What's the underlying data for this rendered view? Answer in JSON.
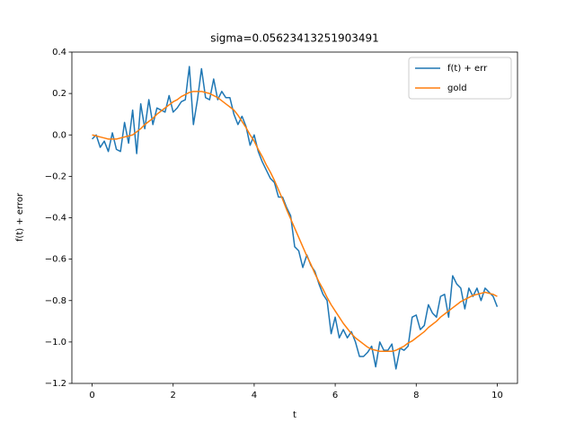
{
  "chart_data": {
    "type": "line",
    "title": "sigma=0.05623413251903491",
    "x_label": "t",
    "y_label": "f(t) + error",
    "x": [
      0,
      0.1,
      0.2,
      0.3,
      0.4,
      0.5,
      0.6,
      0.7,
      0.8,
      0.9,
      1,
      1.1,
      1.2,
      1.3,
      1.4,
      1.5,
      1.6,
      1.7,
      1.8,
      1.9,
      2,
      2.1,
      2.2,
      2.3,
      2.4,
      2.5,
      2.6,
      2.7,
      2.8,
      2.9,
      3,
      3.1,
      3.2,
      3.3,
      3.4,
      3.5,
      3.6,
      3.7,
      3.8,
      3.9,
      4,
      4.1,
      4.2,
      4.3,
      4.4,
      4.5,
      4.6,
      4.7,
      4.8,
      4.9,
      5,
      5.1,
      5.2,
      5.3,
      5.4,
      5.5,
      5.6,
      5.7,
      5.8,
      5.9,
      6,
      6.1,
      6.2,
      6.3,
      6.4,
      6.5,
      6.6,
      6.7,
      6.8,
      6.9,
      7,
      7.1,
      7.2,
      7.3,
      7.4,
      7.5,
      7.6,
      7.7,
      7.8,
      7.9,
      8,
      8.1,
      8.2,
      8.3,
      8.4,
      8.5,
      8.6,
      8.7,
      8.8,
      8.9,
      9,
      9.1,
      9.2,
      9.3,
      9.4,
      9.5,
      9.6,
      9.7,
      9.8,
      9.9,
      10
    ],
    "series": [
      {
        "name": "f(t) + err",
        "color": "#1f77b4",
        "values": [
          -0.02,
          0,
          -0.06,
          -0.03,
          -0.08,
          0.01,
          -0.07,
          -0.08,
          0.06,
          -0.04,
          0.12,
          -0.09,
          0.15,
          0.03,
          0.17,
          0.05,
          0.13,
          0.12,
          0.11,
          0.19,
          0.11,
          0.13,
          0.16,
          0.17,
          0.33,
          0.05,
          0.17,
          0.32,
          0.18,
          0.17,
          0.27,
          0.17,
          0.21,
          0.18,
          0.18,
          0.1,
          0.05,
          0.09,
          0.04,
          -0.05,
          0,
          -0.08,
          -0.13,
          -0.17,
          -0.21,
          -0.23,
          -0.3,
          -0.3,
          -0.35,
          -0.39,
          -0.54,
          -0.56,
          -0.64,
          -0.58,
          -0.63,
          -0.66,
          -0.72,
          -0.77,
          -0.8,
          -0.96,
          -0.88,
          -0.98,
          -0.94,
          -0.98,
          -0.95,
          -1,
          -1.07,
          -1.07,
          -1.05,
          -1.02,
          -1.12,
          -1,
          -1.04,
          -1.04,
          -1.01,
          -1.13,
          -1.03,
          -1.04,
          -1.02,
          -0.88,
          -0.87,
          -0.94,
          -0.92,
          -0.82,
          -0.86,
          -0.88,
          -0.78,
          -0.77,
          -0.88,
          -0.68,
          -0.72,
          -0.74,
          -0.84,
          -0.74,
          -0.78,
          -0.74,
          -0.8,
          -0.74,
          -0.76,
          -0.78,
          -0.83
        ]
      },
      {
        "name": "gold",
        "color": "#ff7f0e",
        "values": [
          0,
          -0.005,
          -0.01,
          -0.015,
          -0.02,
          -0.02,
          -0.02,
          -0.015,
          -0.01,
          -0.005,
          0,
          0.015,
          0.03,
          0.05,
          0.065,
          0.08,
          0.1,
          0.115,
          0.13,
          0.145,
          0.16,
          0.17,
          0.185,
          0.195,
          0.205,
          0.21,
          0.21,
          0.21,
          0.205,
          0.2,
          0.19,
          0.18,
          0.165,
          0.15,
          0.135,
          0.12,
          0.095,
          0.065,
          0.035,
          0,
          -0.03,
          -0.07,
          -0.105,
          -0.145,
          -0.18,
          -0.22,
          -0.265,
          -0.31,
          -0.36,
          -0.405,
          -0.45,
          -0.495,
          -0.54,
          -0.585,
          -0.625,
          -0.67,
          -0.71,
          -0.745,
          -0.785,
          -0.82,
          -0.85,
          -0.88,
          -0.91,
          -0.935,
          -0.96,
          -0.98,
          -0.995,
          -1.01,
          -1.025,
          -1.035,
          -1.04,
          -1.045,
          -1.045,
          -1.045,
          -1.045,
          -1.04,
          -1.03,
          -1.02,
          -1.005,
          -0.995,
          -0.98,
          -0.965,
          -0.95,
          -0.93,
          -0.915,
          -0.9,
          -0.88,
          -0.865,
          -0.85,
          -0.835,
          -0.82,
          -0.805,
          -0.795,
          -0.785,
          -0.775,
          -0.77,
          -0.765,
          -0.76,
          -0.765,
          -0.77,
          -0.78
        ]
      }
    ],
    "xlim": [
      -0.5,
      10.5
    ],
    "ylim": [
      -1.2,
      0.4
    ],
    "xticks": [
      0,
      2,
      4,
      6,
      8,
      10
    ],
    "yticks": [
      {
        "value": -1.2,
        "label": "−1.2"
      },
      {
        "value": -1.0,
        "label": "−1.0"
      },
      {
        "value": -0.8,
        "label": "−0.8"
      },
      {
        "value": -0.6,
        "label": "−0.6"
      },
      {
        "value": -0.4,
        "label": "−0.4"
      },
      {
        "value": -0.2,
        "label": "−0.2"
      },
      {
        "value": 0,
        "label": "0.0"
      },
      0.2,
      0.4
    ],
    "legend": "upper right"
  }
}
